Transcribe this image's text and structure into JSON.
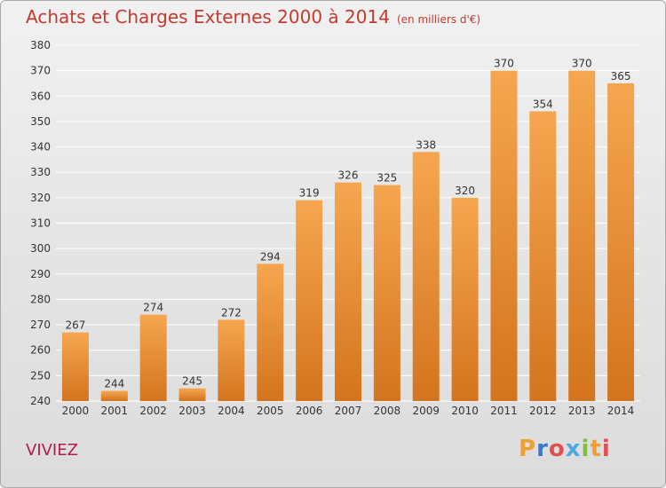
{
  "title": "Achats et Charges Externes 2000 à 2014",
  "subtitle": "(en milliers d'€)",
  "commune": "VIVIEZ",
  "logo": {
    "text": "Proxiti",
    "letters": [
      {
        "ch": "P",
        "color": "#f0a030"
      },
      {
        "ch": "r",
        "color": "#3a78c8"
      },
      {
        "ch": "o",
        "color": "#e05050"
      },
      {
        "ch": "x",
        "color": "#50a8e0"
      },
      {
        "ch": "i",
        "color": "#80c040"
      },
      {
        "ch": "t",
        "color": "#f0a030"
      },
      {
        "ch": "i",
        "color": "#e05050"
      }
    ]
  },
  "colors": {
    "bar_top": "#f6a650",
    "bar_bottom": "#d4741e",
    "title": "#c33a2f",
    "commune": "#b21c4a"
  },
  "chart_data": {
    "type": "bar",
    "title": "Achats et Charges Externes 2000 à 2014",
    "subtitle": "(en milliers d'€)",
    "xlabel": "",
    "ylabel": "",
    "categories": [
      "2000",
      "2001",
      "2002",
      "2003",
      "2004",
      "2005",
      "2006",
      "2007",
      "2008",
      "2009",
      "2010",
      "2011",
      "2012",
      "2013",
      "2014"
    ],
    "values": [
      267,
      244,
      274,
      245,
      272,
      294,
      319,
      326,
      325,
      338,
      320,
      370,
      354,
      370,
      365
    ],
    "ylim": [
      240,
      380
    ],
    "yticks": [
      240,
      250,
      260,
      270,
      280,
      290,
      300,
      310,
      320,
      330,
      340,
      350,
      360,
      370,
      380
    ],
    "grid": true,
    "legend": "none"
  }
}
